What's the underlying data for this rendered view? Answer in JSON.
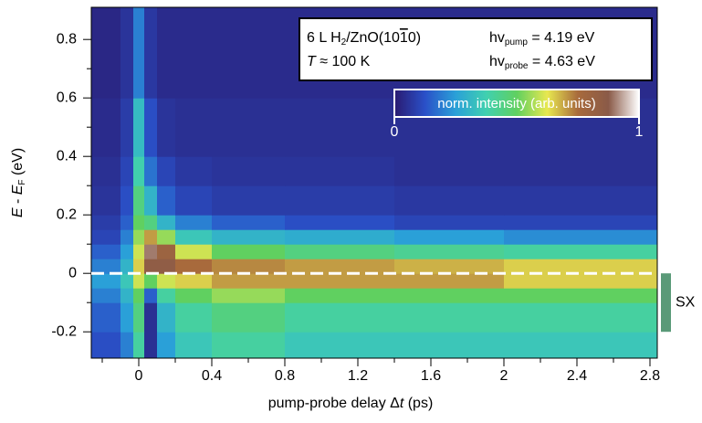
{
  "chart_data": {
    "type": "heatmap",
    "x_label": [
      "pump-probe delay Δ",
      "t",
      " (ps)"
    ],
    "y_label": [
      "E",
      " - ",
      "E",
      "F",
      " (eV)"
    ],
    "xlim": [
      -0.26,
      2.84
    ],
    "ylim": [
      -0.29,
      0.91
    ],
    "xticks": [
      0.0,
      0.4,
      0.8,
      1.2,
      1.6,
      2.0,
      2.4,
      2.8
    ],
    "xticks_minor": [
      -0.2,
      0.2,
      0.6,
      1.0,
      1.4,
      1.8,
      2.2,
      2.6
    ],
    "yticks": [
      -0.2,
      0.0,
      0.2,
      0.4,
      0.6,
      0.8
    ],
    "yticks_minor": [
      -0.1,
      0.1,
      0.3,
      0.5,
      0.7
    ],
    "x_edges": [
      -0.26,
      -0.1,
      -0.03,
      0.03,
      0.1,
      0.2,
      0.4,
      0.8,
      1.4,
      2.0,
      2.84
    ],
    "y_edges": [
      -0.29,
      -0.2,
      -0.1,
      -0.05,
      0,
      0.05,
      0.1,
      0.15,
      0.2,
      0.3,
      0.4,
      0.6,
      0.91
    ],
    "z": [
      [
        0.12,
        0.2,
        0.4,
        0.05,
        0.25,
        0.35,
        0.4,
        0.35,
        0.35,
        0.35
      ],
      [
        0.15,
        0.25,
        0.45,
        0.05,
        0.3,
        0.4,
        0.45,
        0.4,
        0.4,
        0.4
      ],
      [
        0.2,
        0.3,
        0.5,
        0.15,
        0.4,
        0.5,
        0.55,
        0.5,
        0.5,
        0.5
      ],
      [
        0.25,
        0.35,
        0.6,
        0.5,
        0.6,
        0.65,
        0.7,
        0.7,
        0.7,
        0.65
      ],
      [
        0.2,
        0.3,
        0.65,
        0.85,
        0.85,
        0.75,
        0.72,
        0.7,
        0.68,
        0.65
      ],
      [
        0.15,
        0.25,
        0.6,
        0.9,
        0.8,
        0.6,
        0.5,
        0.45,
        0.42,
        0.4
      ],
      [
        0.1,
        0.2,
        0.55,
        0.7,
        0.55,
        0.35,
        0.3,
        0.28,
        0.25,
        0.22
      ],
      [
        0.08,
        0.15,
        0.5,
        0.45,
        0.3,
        0.2,
        0.15,
        0.12,
        0.1,
        0.1
      ],
      [
        0.06,
        0.12,
        0.45,
        0.3,
        0.15,
        0.1,
        0.08,
        0.08,
        0.07,
        0.07
      ],
      [
        0.05,
        0.1,
        0.38,
        0.18,
        0.1,
        0.07,
        0.06,
        0.06,
        0.05,
        0.05
      ],
      [
        0.04,
        0.08,
        0.32,
        0.12,
        0.06,
        0.05,
        0.05,
        0.05,
        0.05,
        0.05
      ],
      [
        0.03,
        0.06,
        0.2,
        0.07,
        0.04,
        0.04,
        0.04,
        0.04,
        0.04,
        0.04
      ]
    ],
    "colormap": [
      "#2a1a70",
      "#2a50c8",
      "#2aa0d8",
      "#40d0b0",
      "#60d060",
      "#e8e850",
      "#a86a3c",
      "#8a5a48",
      "#ffffff"
    ],
    "colorbar": {
      "label": "norm. intensity (arb. units)",
      "lim": [
        0,
        1
      ],
      "ticks": [
        0,
        1
      ]
    },
    "hline": 0,
    "bracket": {
      "label": "SX",
      "range": [
        -0.2,
        0.0
      ],
      "color": "#5a9a78"
    },
    "info_box": {
      "sample": [
        "6 L H",
        "2",
        "/ZnO(10",
        "1",
        "0)"
      ],
      "temperature": [
        "T",
        " ≈ 100 K"
      ],
      "pump": [
        "hv",
        "pump",
        " = 4.19 eV"
      ],
      "probe": [
        "hv",
        "probe",
        " = 4.63 eV"
      ]
    }
  }
}
